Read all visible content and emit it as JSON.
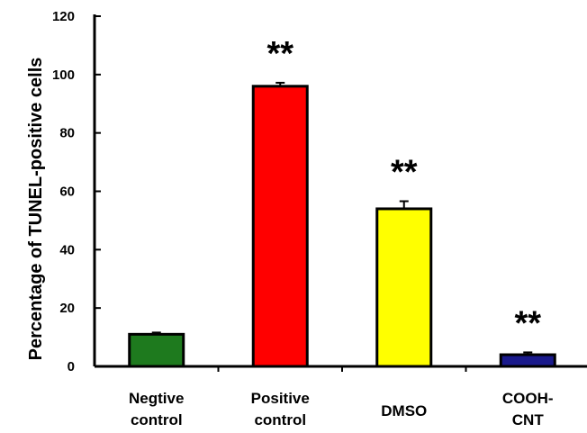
{
  "chart_data": {
    "type": "bar",
    "title": "",
    "xlabel": "",
    "ylabel": "Percentage of TUNEL-positive cells",
    "ylim": [
      0,
      120
    ],
    "yticks": [
      0,
      20,
      40,
      60,
      80,
      100,
      120
    ],
    "grid": false,
    "categories": [
      [
        "Negtive",
        "control"
      ],
      [
        "Positive",
        "control"
      ],
      [
        "DMSO"
      ],
      [
        "COOH-",
        "CNT"
      ]
    ],
    "values": [
      11,
      96,
      54,
      4
    ],
    "errors": [
      0.6,
      1.2,
      2.6,
      0.8
    ],
    "colors": [
      "#1e7a1e",
      "#ff0000",
      "#ffff00",
      "#1a1a8c"
    ],
    "annotations": [
      "",
      "**",
      "**",
      "**"
    ]
  }
}
